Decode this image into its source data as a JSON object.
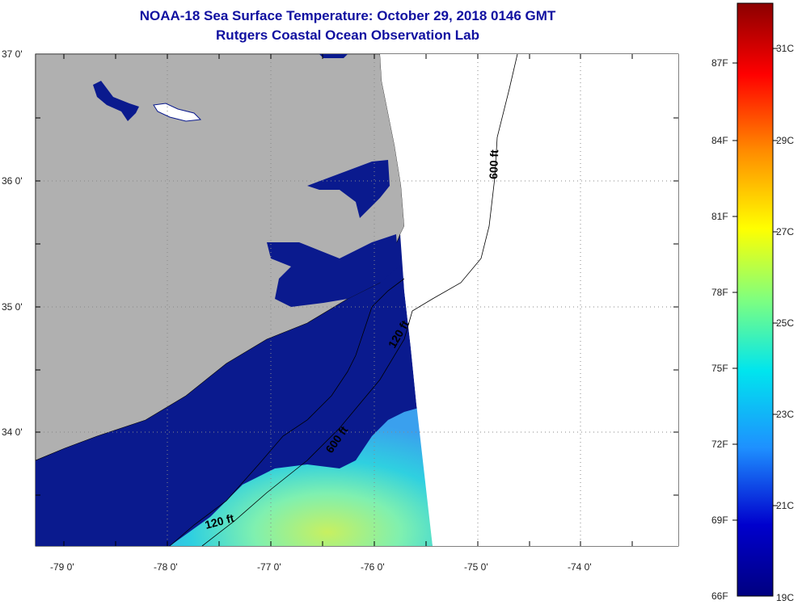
{
  "header": {
    "title": "NOAA-18 Sea Surface Temperature:  October 29, 2018 0146 GMT",
    "subtitle": "Rutgers Coastal Ocean Observation Lab"
  },
  "axes": {
    "lat_labels": [
      "37 0'",
      "36 0'",
      "35 0'",
      "34 0'"
    ],
    "lon_labels": [
      "-79 0'",
      "-78 0'",
      "-77 0'",
      "-76 0'",
      "-75 0'",
      "-74 0'"
    ]
  },
  "contours": {
    "label_600_north": "600 ft",
    "label_120_middle": "120 ft",
    "label_600_south": "600 ft",
    "label_120_south": "120 ft"
  },
  "colorbar": {
    "f_labels": [
      "87F",
      "84F",
      "81F",
      "78F",
      "75F",
      "72F",
      "69F",
      "66F"
    ],
    "c_labels": [
      "31C",
      "29C",
      "27C",
      "25C",
      "23C",
      "21C",
      "19C"
    ],
    "colors": [
      "#8b0000",
      "#ff0000",
      "#ff8c00",
      "#ffff00",
      "#7fff7f",
      "#00e5ee",
      "#1e90ff",
      "#0000cd",
      "#000080"
    ]
  },
  "colors": {
    "land": "#b0b0b0",
    "cold_water": "#0a1a8e",
    "warm_water_1": "#2fd0e0",
    "warm_water_2": "#7ff0b0",
    "warm_water_3": "#c8f060"
  }
}
